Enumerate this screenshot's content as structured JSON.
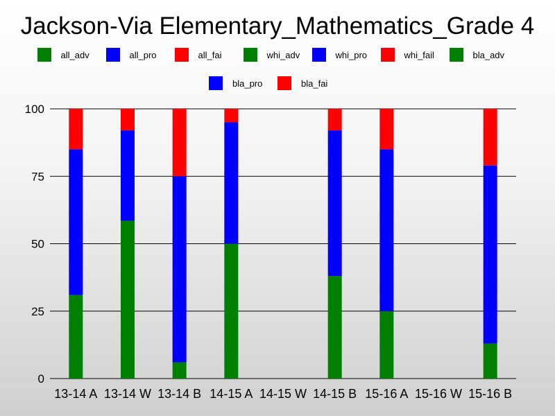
{
  "chart_data": {
    "type": "bar",
    "stacked": true,
    "title": "Jackson-Via Elementary_Mathematics_Grade 4",
    "legend": [
      {
        "label": "all_adv",
        "color": "#008000"
      },
      {
        "label": "all_pro",
        "color": "#0000ff"
      },
      {
        "label": "all_fai",
        "color": "#ff0000"
      },
      {
        "label": "whi_adv",
        "color": "#008000"
      },
      {
        "label": "whi_pro",
        "color": "#0000ff"
      },
      {
        "label": "whi_fail",
        "color": "#ff0000"
      },
      {
        "label": "bla_adv",
        "color": "#008000"
      },
      {
        "label": "bla_pro",
        "color": "#0000ff"
      },
      {
        "label": "bla_fai",
        "color": "#ff0000"
      }
    ],
    "legend_position": "top",
    "categories": [
      "13-14 A",
      "13-14 W",
      "13-14 B",
      "14-15 A",
      "14-15 W",
      "14-15 B",
      "15-16 A",
      "15-16 W",
      "15-16 B"
    ],
    "tick_labels": [
      "13-14 A",
      "13-14 W",
      "13-14 B",
      "14-15 A",
      "14-15 W",
      "14-15 B",
      "15-16 A",
      "15-16 W",
      "15-16 B"
    ],
    "series": [
      {
        "name": "adv",
        "color": "#008000",
        "values": [
          31,
          58.5,
          6,
          50,
          null,
          38,
          25,
          null,
          13
        ]
      },
      {
        "name": "pro",
        "color": "#0000ff",
        "values": [
          54,
          33.5,
          69,
          45,
          null,
          54,
          60,
          null,
          66
        ]
      },
      {
        "name": "fail",
        "color": "#ff0000",
        "values": [
          15,
          8,
          25,
          5,
          null,
          8,
          15,
          null,
          21
        ]
      }
    ],
    "ylim": [
      0,
      100
    ],
    "yticks": [
      0,
      25,
      50,
      75,
      100
    ],
    "grid": true
  }
}
